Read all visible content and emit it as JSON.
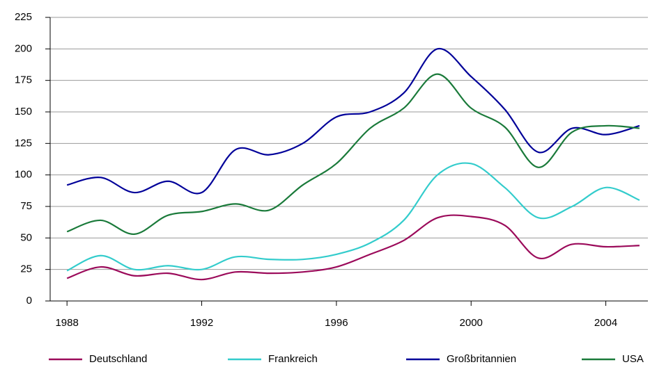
{
  "chart_data": {
    "type": "line",
    "x": [
      1988,
      1989,
      1990,
      1991,
      1992,
      1993,
      1994,
      1995,
      1996,
      1997,
      1998,
      1999,
      2000,
      2001,
      2002,
      2003,
      2004,
      2005
    ],
    "series": [
      {
        "name": "Deutschland",
        "color": "#9b0a5a",
        "values": [
          18,
          27,
          20,
          22,
          17,
          23,
          22,
          23,
          27,
          37,
          48,
          66,
          67,
          60,
          34,
          45,
          43,
          44
        ]
      },
      {
        "name": "Frankreich",
        "color": "#33cccc",
        "values": [
          24,
          36,
          25,
          28,
          25,
          35,
          33,
          33,
          37,
          46,
          64,
          100,
          109,
          90,
          66,
          75,
          90,
          80
        ]
      },
      {
        "name": "Großbritannien",
        "color": "#000099",
        "values": [
          92,
          98,
          86,
          95,
          86,
          120,
          116,
          125,
          146,
          150,
          165,
          200,
          178,
          152,
          118,
          137,
          132,
          139
        ]
      },
      {
        "name": "USA",
        "color": "#1a7a3a",
        "values": [
          55,
          64,
          53,
          68,
          71,
          77,
          72,
          92,
          109,
          137,
          153,
          180,
          153,
          138,
          106,
          134,
          139,
          137
        ]
      }
    ],
    "xlim": [
      1987.5,
      2005.25
    ],
    "xticks": [
      1988,
      1992,
      1996,
      2000,
      2004
    ],
    "ylim": [
      0,
      225
    ],
    "yticks": [
      0,
      25,
      50,
      75,
      100,
      125,
      150,
      175,
      200,
      225
    ],
    "grid": true,
    "legend": "bottom"
  }
}
